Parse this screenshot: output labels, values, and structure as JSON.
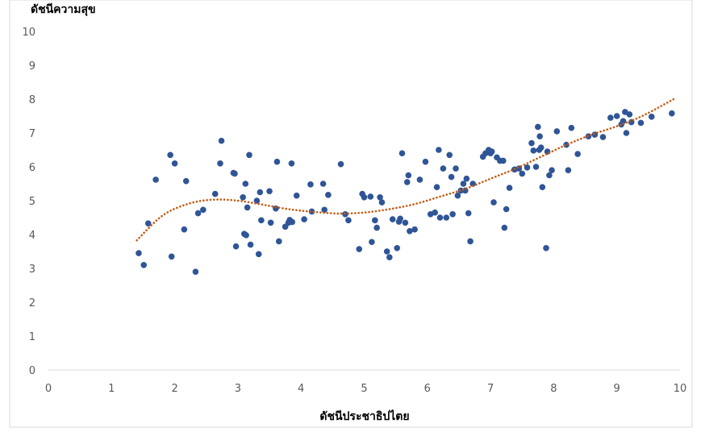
{
  "chart_data": {
    "type": "scatter",
    "title": "",
    "ylabel": "ดัชนีความสุข",
    "xlabel": "ดัชนีประชาธิปไตย",
    "xlim": [
      0,
      10
    ],
    "ylim": [
      0,
      10
    ],
    "x_ticks": [
      "0",
      "1",
      "2",
      "3",
      "4",
      "5",
      "6",
      "7",
      "8",
      "9",
      "10"
    ],
    "y_ticks": [
      "0",
      "1",
      "2",
      "3",
      "4",
      "5",
      "6",
      "7",
      "8",
      "9",
      "10"
    ],
    "grid": false,
    "legend": "none",
    "colors": {
      "points": "#2f5597",
      "trend": "#c55a11",
      "axis": "#d9d9d9",
      "frame": "#d9d9d9"
    },
    "trendline": {
      "style": "dotted",
      "kind": "polynomial",
      "points": [
        [
          1.4,
          3.83
        ],
        [
          1.8,
          4.55
        ],
        [
          2.2,
          4.9
        ],
        [
          2.6,
          5.03
        ],
        [
          3.0,
          5.0
        ],
        [
          3.4,
          4.88
        ],
        [
          3.8,
          4.75
        ],
        [
          4.2,
          4.67
        ],
        [
          4.6,
          4.62
        ],
        [
          5.0,
          4.65
        ],
        [
          5.4,
          4.75
        ],
        [
          5.8,
          4.9
        ],
        [
          6.2,
          5.12
        ],
        [
          6.6,
          5.35
        ],
        [
          7.0,
          5.65
        ],
        [
          7.4,
          5.95
        ],
        [
          7.8,
          6.3
        ],
        [
          8.2,
          6.65
        ],
        [
          8.6,
          6.95
        ],
        [
          9.0,
          7.2
        ],
        [
          9.4,
          7.5
        ],
        [
          9.9,
          8.0
        ]
      ]
    },
    "x": [
      1.43,
      1.51,
      1.58,
      1.7,
      1.93,
      1.95,
      2.0,
      2.15,
      2.18,
      2.33,
      2.37,
      2.45,
      2.64,
      2.72,
      2.74,
      2.93,
      2.95,
      2.97,
      3.08,
      3.1,
      3.12,
      3.13,
      3.15,
      3.18,
      3.2,
      3.3,
      3.33,
      3.35,
      3.37,
      3.5,
      3.52,
      3.6,
      3.62,
      3.65,
      3.75,
      3.8,
      3.82,
      3.85,
      3.86,
      3.93,
      4.05,
      4.15,
      4.17,
      4.35,
      4.37,
      4.43,
      4.63,
      4.7,
      4.75,
      4.92,
      4.97,
      5.0,
      5.1,
      5.12,
      5.17,
      5.2,
      5.25,
      5.28,
      5.36,
      5.4,
      5.45,
      5.52,
      5.55,
      5.57,
      5.6,
      5.65,
      5.68,
      5.7,
      5.72,
      5.8,
      5.88,
      5.97,
      6.05,
      6.12,
      6.15,
      6.18,
      6.2,
      6.25,
      6.3,
      6.35,
      6.38,
      6.4,
      6.45,
      6.48,
      6.53,
      6.57,
      6.6,
      6.62,
      6.65,
      6.68,
      6.72,
      6.88,
      6.92,
      6.97,
      7.0,
      7.02,
      7.05,
      7.1,
      7.15,
      7.2,
      7.22,
      7.25,
      7.3,
      7.38,
      7.45,
      7.5,
      7.58,
      7.65,
      7.68,
      7.72,
      7.75,
      7.77,
      7.78,
      7.8,
      7.82,
      7.88,
      7.9,
      7.93,
      7.97,
      8.05,
      8.2,
      8.23,
      8.28,
      8.38,
      8.55,
      8.65,
      8.78,
      8.9,
      9.0,
      9.07,
      9.1,
      9.13,
      9.15,
      9.2,
      9.23,
      9.38,
      9.55,
      9.87
    ],
    "y": [
      3.45,
      3.1,
      4.33,
      5.62,
      6.35,
      3.35,
      6.1,
      4.15,
      5.58,
      2.9,
      4.63,
      4.73,
      5.2,
      6.1,
      6.77,
      5.82,
      5.8,
      3.65,
      5.1,
      4.02,
      5.5,
      3.98,
      4.8,
      6.35,
      3.7,
      5.0,
      3.42,
      5.25,
      4.42,
      5.28,
      4.35,
      4.77,
      6.15,
      3.8,
      4.23,
      4.35,
      4.43,
      6.1,
      4.37,
      5.15,
      4.45,
      5.48,
      4.68,
      5.5,
      4.73,
      5.17,
      6.08,
      4.6,
      4.42,
      3.57,
      5.2,
      5.1,
      5.12,
      3.78,
      4.42,
      4.2,
      5.1,
      4.95,
      3.5,
      3.33,
      4.45,
      3.6,
      4.38,
      4.47,
      6.4,
      4.35,
      5.55,
      5.75,
      4.1,
      4.15,
      5.62,
      6.15,
      4.6,
      4.65,
      5.4,
      6.5,
      4.5,
      5.95,
      4.5,
      6.35,
      5.7,
      4.6,
      5.95,
      5.15,
      5.3,
      5.5,
      5.3,
      5.65,
      4.63,
      3.8,
      5.5,
      6.3,
      6.4,
      6.5,
      6.4,
      6.45,
      4.95,
      6.28,
      6.18,
      6.18,
      4.2,
      4.75,
      5.38,
      5.92,
      5.95,
      5.8,
      5.98,
      6.7,
      6.48,
      6.0,
      7.18,
      6.5,
      6.9,
      6.57,
      5.4,
      3.6,
      6.45,
      5.75,
      5.9,
      7.05,
      6.65,
      5.9,
      7.15,
      6.38,
      6.9,
      6.95,
      6.88,
      7.45,
      7.5,
      7.25,
      7.35,
      7.62,
      7.0,
      7.55,
      7.32,
      7.3,
      7.48,
      7.58
    ]
  }
}
